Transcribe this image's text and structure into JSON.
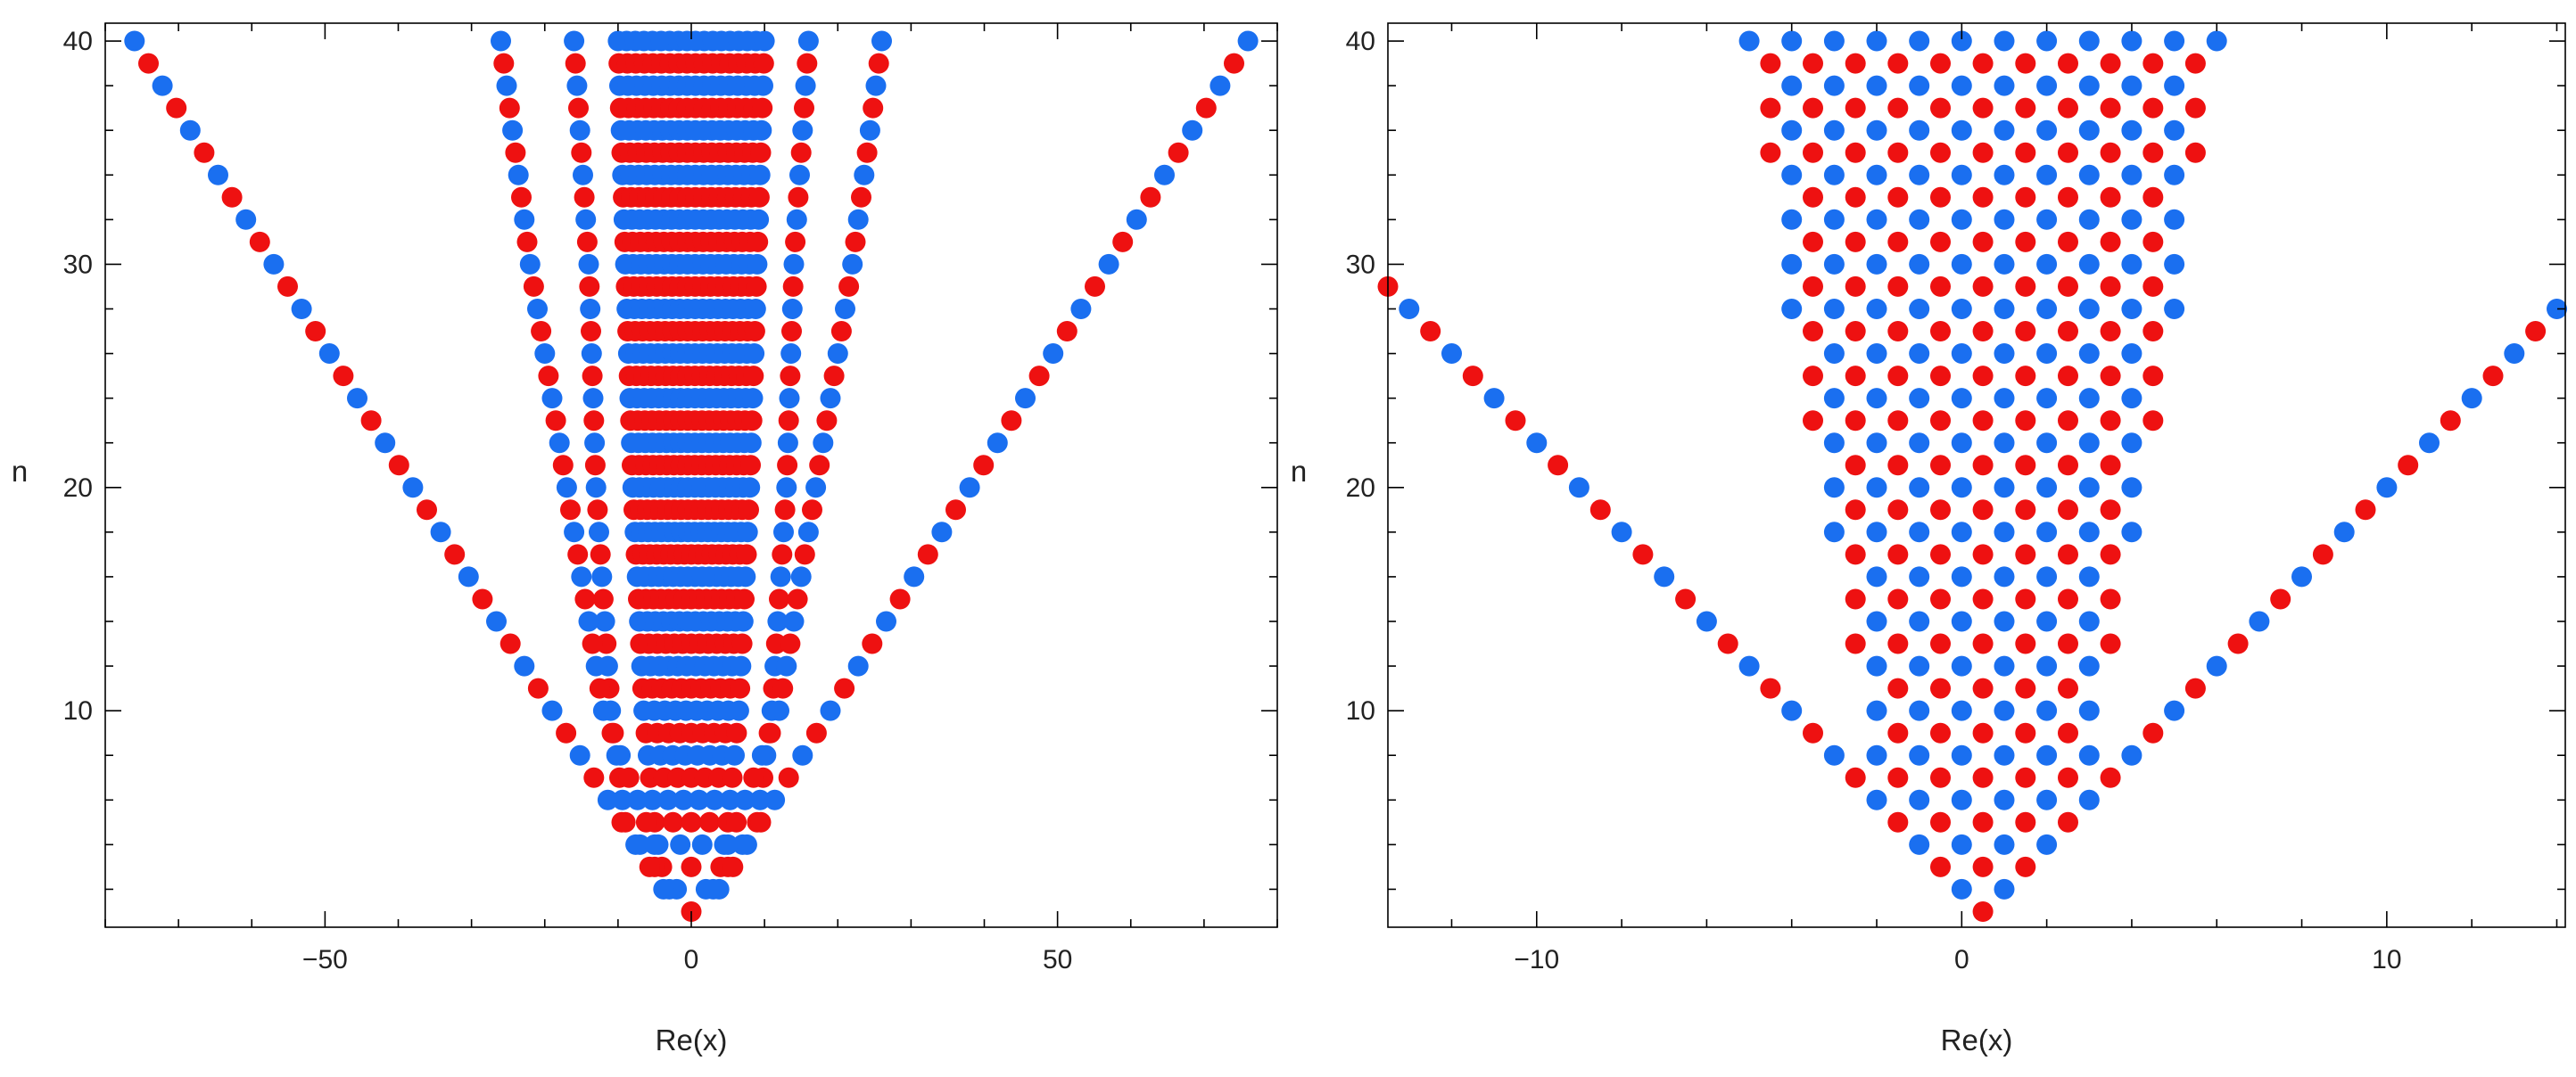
{
  "chart_data": [
    {
      "type": "scatter",
      "xlabel": "Re(x)",
      "ylabel": "n",
      "xlim": [
        -80,
        80
      ],
      "ylim": [
        0.3,
        40.8
      ],
      "xticks": [
        -50,
        0,
        50
      ],
      "yticks": [
        10,
        20,
        30,
        40
      ],
      "grid": false,
      "point_rule": "n points per level n, alternating colors",
      "outer_branch_halfwidth_per_n": 1.9,
      "inner_band_halfwidth": [
        {
          "n": 1,
          "x": 0
        },
        {
          "n": 3,
          "x": 4
        },
        {
          "n": 5,
          "x": 5
        },
        {
          "n": 10,
          "x": 6.5
        },
        {
          "n": 20,
          "x": 8
        },
        {
          "n": 30,
          "x": 9
        },
        {
          "n": 40,
          "x": 10
        }
      ],
      "middle_branch_pairs": [
        [
          {
            "n": 2,
            "x": 3
          },
          {
            "n": 5,
            "x": 9
          },
          {
            "n": 10,
            "x": 11
          },
          {
            "n": 20,
            "x": 13
          },
          {
            "n": 30,
            "x": 14
          },
          {
            "n": 40,
            "x": 16
          }
        ],
        [
          {
            "n": 4,
            "x": 5
          },
          {
            "n": 10,
            "x": 12
          },
          {
            "n": 20,
            "x": 17
          },
          {
            "n": 30,
            "x": 22
          },
          {
            "n": 40,
            "x": 26
          }
        ]
      ],
      "colors": {
        "odd": "#ee1111",
        "even": "#1a6ff0"
      }
    },
    {
      "type": "scatter",
      "xlabel": "Re(x)",
      "ylabel": "n",
      "xlim": [
        -13.5,
        14.2
      ],
      "ylim": [
        0.3,
        40.8
      ],
      "xticks": [
        -10,
        0,
        10
      ],
      "yticks": [
        10,
        20,
        30,
        40
      ],
      "grid": false,
      "point_rule": "n points per level n at spacing 1, centred at n/2, truncated by band",
      "branch_center_offset": 0.5,
      "band_halfwidth": [
        {
          "n": 1,
          "x": 0.5
        },
        {
          "n": 7,
          "x": 2.5
        },
        {
          "n": 13,
          "x": 3.2
        },
        {
          "n": 18,
          "x": 3.6
        },
        {
          "n": 23,
          "x": 4.0
        },
        {
          "n": 29,
          "x": 4.6
        },
        {
          "n": 34,
          "x": 5.0
        },
        {
          "n": 39,
          "x": 5.6
        },
        {
          "n": 40,
          "x": 5.6
        }
      ],
      "colors": {
        "odd": "#ee1111",
        "even": "#1a6ff0"
      }
    }
  ]
}
